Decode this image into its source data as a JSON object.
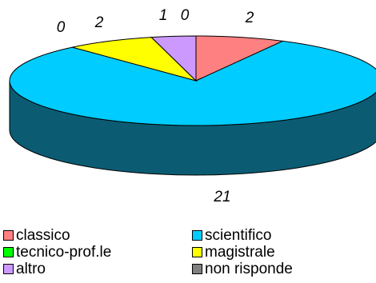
{
  "chart_data": {
    "type": "pie",
    "style": "3d",
    "slices": [
      {
        "label": "classico",
        "value": 2,
        "color": "#ff8080"
      },
      {
        "label": "scientifico",
        "value": 21,
        "color": "#00ccff"
      },
      {
        "label": "tecnico-prof.le",
        "value": 0,
        "color": "#00ff00"
      },
      {
        "label": "magistrale",
        "value": 2,
        "color": "#ffff00"
      },
      {
        "label": "altro",
        "value": 1,
        "color": "#cc99ff"
      },
      {
        "label": "non risponde",
        "value": 0,
        "color": "#808080"
      }
    ],
    "data_labels": [
      "2",
      "21",
      "0",
      "2",
      "1",
      "0"
    ],
    "legend_position": "bottom",
    "side_color": "#0b5c73"
  }
}
